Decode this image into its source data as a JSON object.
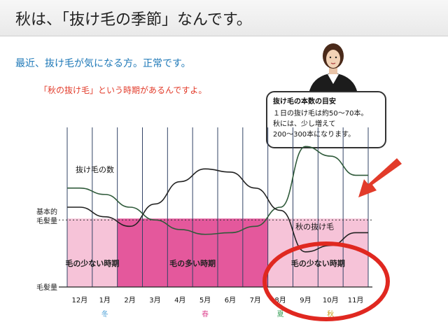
{
  "header": {
    "title": "秋は、「抜け毛の季節」なんです。"
  },
  "subtitle": "最近、抜け毛が気になる方。正常です。",
  "note": "「秋の抜け毛」という時期があるんですよ。",
  "callout": {
    "title": "抜け毛の本数の目安",
    "lines": [
      "１日の抜け毛は約50～70本。",
      "秋には、少し増えて",
      "200～300本になります。"
    ]
  },
  "chart_data": {
    "type": "line",
    "x_categories": [
      "12月",
      "1月",
      "2月",
      "3月",
      "4月",
      "5月",
      "6月",
      "7月",
      "8月",
      "9月",
      "10月",
      "11月"
    ],
    "seasons": [
      {
        "label": "冬",
        "color": "#4a9fd6"
      },
      {
        "label": "春",
        "color": "#e0559a"
      },
      {
        "label": "夏",
        "color": "#3aa05a"
      },
      {
        "label": "秋",
        "color": "#c8a020"
      }
    ],
    "y_labels": {
      "baseline": "基本的\n毛髪量",
      "bottom": "毛髪量"
    },
    "series": [
      {
        "name": "抜け毛の数",
        "values": [
          0.62,
          0.58,
          0.5,
          0.42,
          0.36,
          0.33,
          0.34,
          0.38,
          0.5,
          0.88,
          0.82,
          0.7
        ]
      },
      {
        "name": "秋の抜け毛",
        "values": [
          0.5,
          0.44,
          0.38,
          0.52,
          0.66,
          0.74,
          0.72,
          0.62,
          0.48,
          0.22,
          0.26,
          0.34
        ]
      }
    ],
    "baseline": 0.42,
    "periods": [
      {
        "label": "毛の少ない時期",
        "from": 0,
        "to": 2
      },
      {
        "label": "毛の多い時期",
        "from": 2,
        "to": 8
      },
      {
        "label": "毛の少ない時期",
        "from": 8,
        "to": 12
      }
    ],
    "series_labels": [
      "抜け毛の数",
      "秋の抜け毛"
    ]
  }
}
